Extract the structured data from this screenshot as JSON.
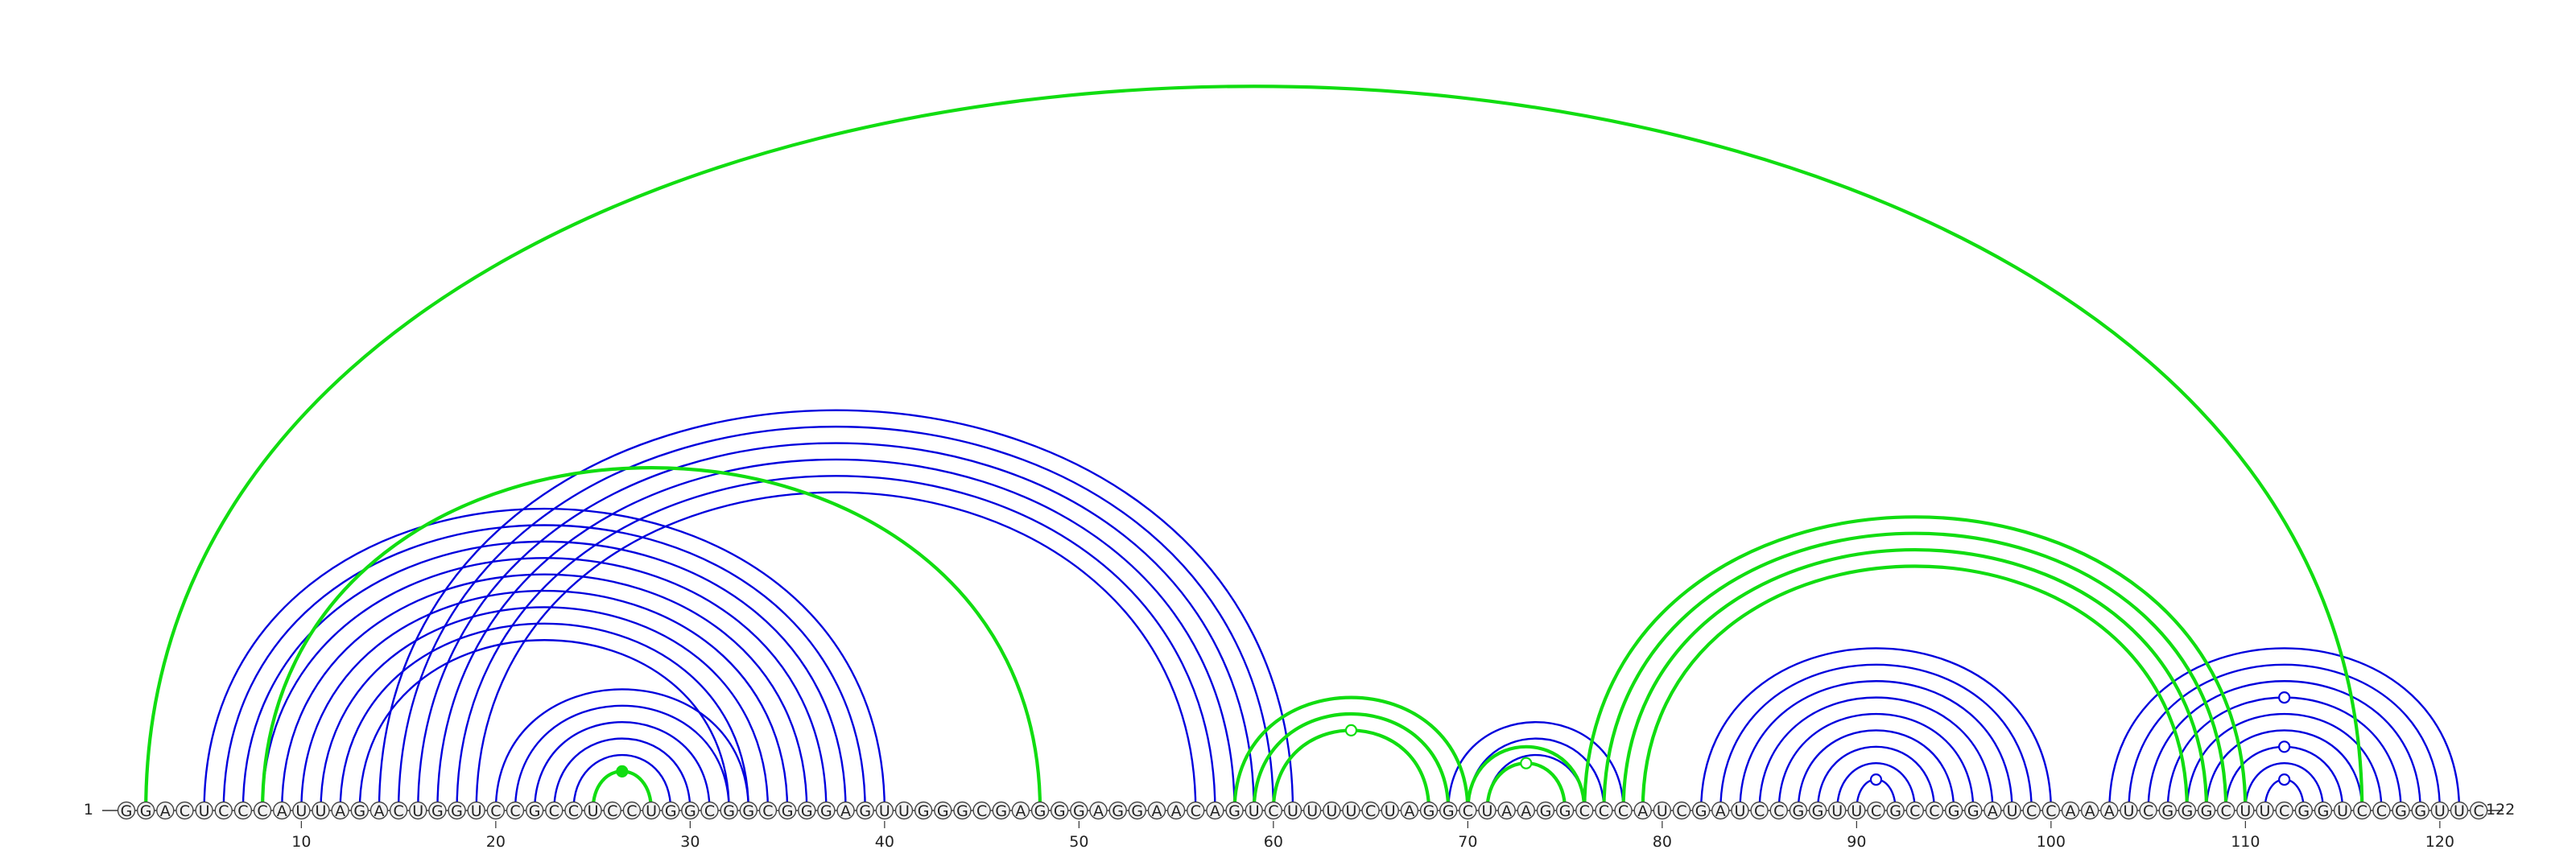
{
  "diagram": {
    "type": "rna-arc-diagram",
    "sequence": "GGACUCCCAUUAGACUGGUCCGCCUCCUGGCGGCGGGAGUUGGGCGAGGGAGGAACAGUCUUUUCUAGGCUAAGGCCCAUCGAUCCGGUUCGCCGGAUCCAAAUCGGGCUUCGGUCCGGUUC",
    "start_label": "1",
    "end_label": "122",
    "ticks": [
      "10",
      "20",
      "30",
      "40",
      "50",
      "60",
      "70",
      "80",
      "90",
      "100",
      "110",
      "120"
    ],
    "colors": {
      "blue": "#0000dd",
      "green": "#11dd11",
      "nucleotide_fill": "#f2f2f2",
      "nucleotide_stroke": "#444444",
      "text": "#222222"
    },
    "blue_pairs": [
      [
        5,
        40
      ],
      [
        6,
        39
      ],
      [
        7,
        38
      ],
      [
        8,
        37
      ],
      [
        9,
        36
      ],
      [
        10,
        35
      ],
      [
        11,
        34
      ],
      [
        12,
        33
      ],
      [
        13,
        32
      ],
      [
        14,
        61
      ],
      [
        15,
        60
      ],
      [
        16,
        59
      ],
      [
        17,
        58
      ],
      [
        18,
        57
      ],
      [
        19,
        56
      ],
      [
        20,
        33
      ],
      [
        21,
        32
      ],
      [
        22,
        31
      ],
      [
        23,
        30
      ],
      [
        24,
        29
      ],
      [
        25,
        28
      ],
      [
        69,
        78
      ],
      [
        70,
        77
      ],
      [
        71,
        76
      ],
      [
        82,
        100
      ],
      [
        83,
        99
      ],
      [
        84,
        98
      ],
      [
        85,
        97
      ],
      [
        86,
        96
      ],
      [
        87,
        95
      ],
      [
        88,
        94
      ],
      [
        89,
        93
      ],
      [
        90,
        92
      ],
      [
        103,
        121
      ],
      [
        104,
        120
      ],
      [
        105,
        119
      ],
      [
        106,
        118
      ],
      [
        107,
        117
      ],
      [
        108,
        116
      ],
      [
        109,
        115
      ],
      [
        110,
        114
      ],
      [
        111,
        113
      ]
    ],
    "green_pairs": [
      [
        2,
        116
      ],
      [
        8,
        48
      ],
      [
        25,
        28
      ],
      [
        58,
        70
      ],
      [
        59,
        69
      ],
      [
        60,
        68
      ],
      [
        70,
        76
      ],
      [
        71,
        75
      ],
      [
        76,
        110
      ],
      [
        77,
        109
      ],
      [
        78,
        108
      ],
      [
        79,
        107
      ]
    ],
    "markers": [
      {
        "pos": 26.5,
        "color": "green",
        "filled": true,
        "on_pair": [
          25,
          28
        ]
      },
      {
        "pos": 64,
        "color": "green",
        "filled": false,
        "on_pair": [
          60,
          68
        ]
      },
      {
        "pos": 73,
        "color": "green",
        "filled": false,
        "on_pair": [
          71,
          75
        ]
      },
      {
        "pos": 91,
        "color": "blue",
        "filled": false,
        "on_pair": [
          90,
          92
        ]
      },
      {
        "pos": 112,
        "color": "blue",
        "filled": false,
        "on_pair": [
          111,
          113
        ]
      },
      {
        "pos": 112,
        "color": "blue",
        "filled": false,
        "on_pair": [
          109,
          115
        ]
      },
      {
        "pos": 112,
        "color": "blue",
        "filled": false,
        "on_pair": [
          106,
          118
        ]
      }
    ]
  }
}
